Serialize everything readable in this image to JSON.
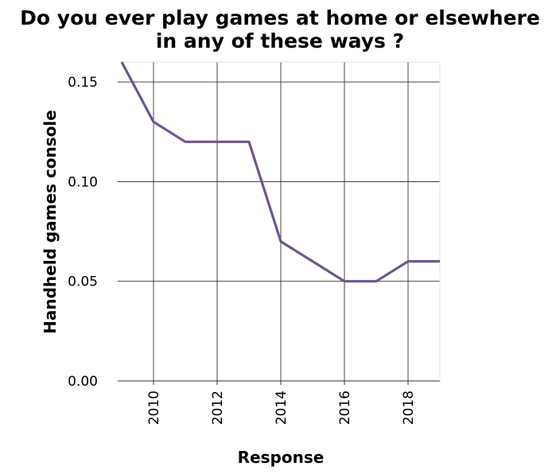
{
  "chart_data": {
    "type": "line",
    "title_lines": [
      "Do you ever play games at home or elsewhere",
      "in any of these ways ?"
    ],
    "xlabel": "Response",
    "ylabel": "Handheld games console",
    "xlim": [
      2009,
      2019
    ],
    "ylim": [
      0,
      0.16
    ],
    "xticks": [
      2010,
      2012,
      2014,
      2016,
      2018
    ],
    "xtick_labels": [
      "2010",
      "2012",
      "2014",
      "2016",
      "2018"
    ],
    "yticks": [
      0,
      0.05,
      0.1,
      0.15
    ],
    "ytick_labels": [
      "0.00",
      "0.05",
      "0.10",
      "0.15"
    ],
    "grid": true,
    "series": [
      {
        "color": "#6f5592",
        "x": [
          2009,
          2010,
          2011,
          2012,
          2013,
          2014,
          2015,
          2016,
          2017,
          2018,
          2019
        ],
        "y": [
          0.16,
          0.13,
          0.12,
          0.12,
          0.12,
          0.07,
          0.06,
          0.05,
          0.05,
          0.06,
          0.06
        ]
      }
    ]
  }
}
